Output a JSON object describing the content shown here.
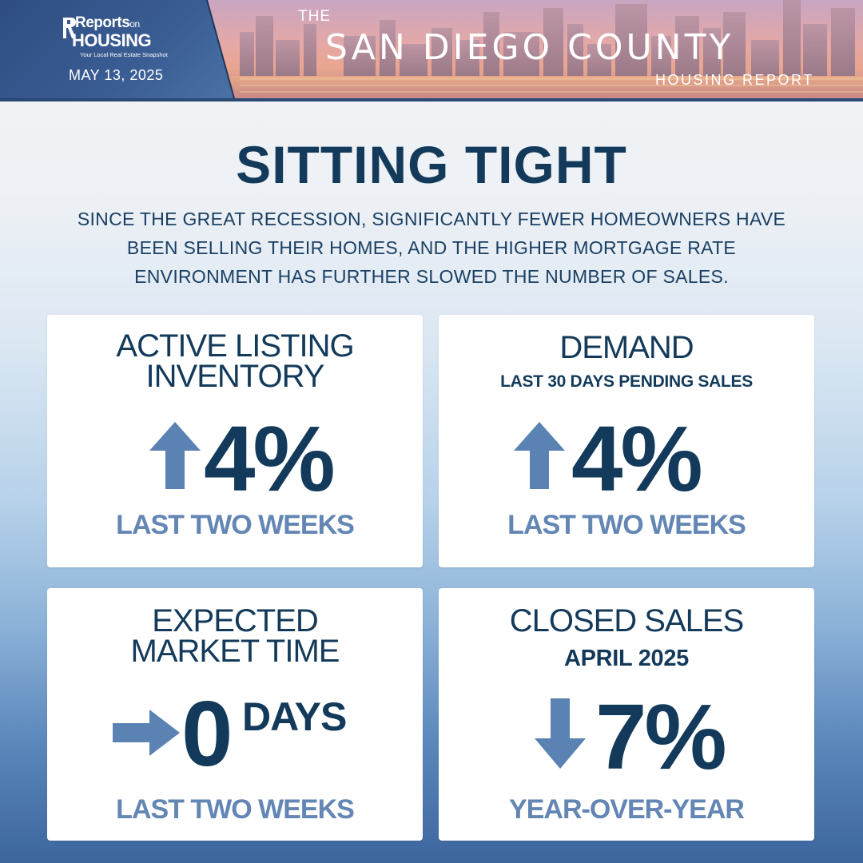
{
  "header": {
    "logo": {
      "reports": "Reports",
      "on": "on",
      "housing": "HOUSING",
      "tagline": "Your Local Real Estate Snapshot"
    },
    "date": "MAY 13, 2025",
    "the": "THE",
    "county": "SAN DIEGO COUNTY",
    "report": "HOUSING REPORT"
  },
  "title": "SITTING TIGHT",
  "subtitle": "SINCE THE GREAT RECESSION, SIGNIFICANTLY FEWER HOMEOWNERS HAVE BEEN SELLING THEIR HOMES, AND THE HIGHER MORTGAGE RATE ENVIRONMENT HAS FURTHER SLOWED THE NUMBER OF SALES.",
  "cards": {
    "inventory": {
      "title_line1": "ACTIVE LISTING",
      "title_line2": "INVENTORY",
      "direction": "up",
      "value": "4%",
      "footer": "LAST TWO WEEKS"
    },
    "demand": {
      "title": "DEMAND",
      "subtitle": "LAST 30 DAYS PENDING SALES",
      "direction": "up",
      "value": "4%",
      "footer": "LAST TWO WEEKS"
    },
    "market_time": {
      "title_line1": "EXPECTED",
      "title_line2": "MARKET TIME",
      "direction": "right",
      "value": "0",
      "unit": "DAYS",
      "footer": "LAST TWO WEEKS"
    },
    "closed_sales": {
      "title": "CLOSED SALES",
      "subtitle": "APRIL 2025",
      "direction": "down",
      "value": "7%",
      "footer": "YEAR-OVER-YEAR"
    }
  },
  "colors": {
    "navy": "#133a5a",
    "accent_blue": "#6386b4",
    "arrow_blue": "#5a82b3"
  }
}
